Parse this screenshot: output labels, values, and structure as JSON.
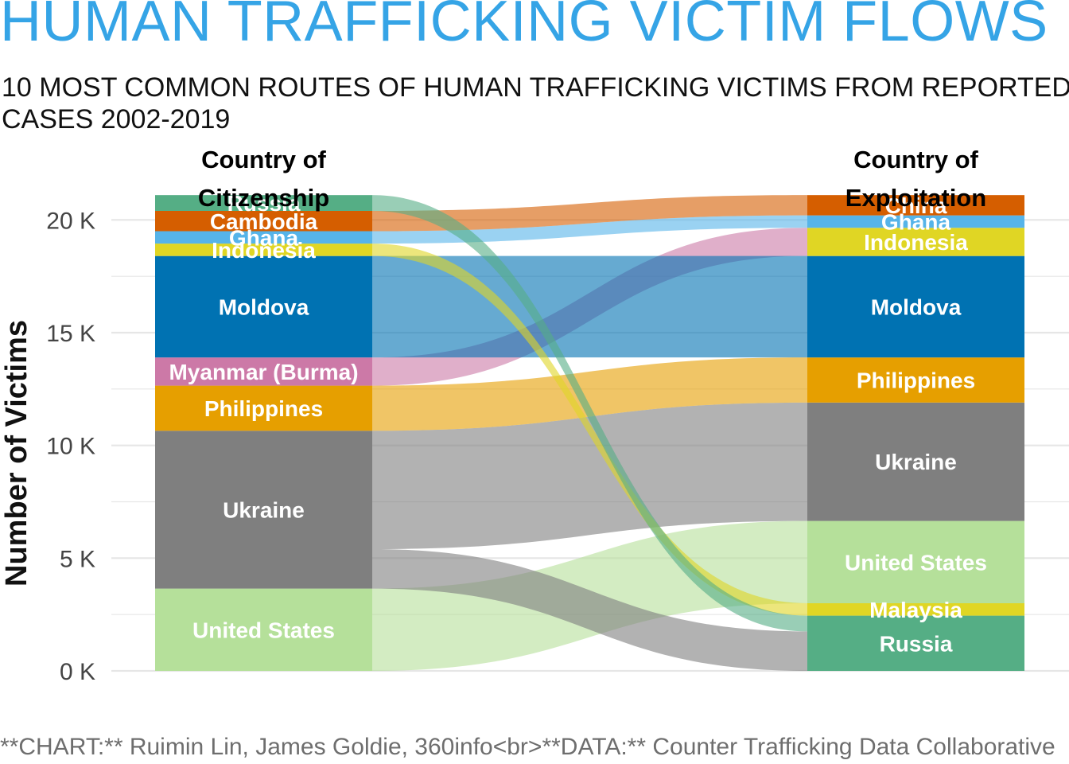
{
  "title": "HUMAN TRAFFICKING VICTIM FLOWS",
  "subtitle": "10 MOST COMMON ROUTES OF HUMAN TRAFFICKING VICTIMS FROM REPORTED\nCASES 2002-2019",
  "caption": "**CHART:** Ruimin Lin, James Goldie, 360info<br>**DATA:** Counter Trafficking Data Collaborative",
  "chart_data": {
    "type": "alluvial",
    "ylabel": "Number of Victims",
    "ylim": [
      0,
      21000
    ],
    "yticks": [
      {
        "value": 0,
        "label": "0 K"
      },
      {
        "value": 5000,
        "label": "5 K"
      },
      {
        "value": 10000,
        "label": "10 K"
      },
      {
        "value": 15000,
        "label": "15 K"
      },
      {
        "value": 20000,
        "label": "20 K"
      }
    ],
    "axes": [
      {
        "key": "citizenship",
        "label": "Country of\nCitizenship"
      },
      {
        "key": "exploitation",
        "label": "Country of\nExploitation"
      }
    ],
    "colors": {
      "United States": "#b5e09a",
      "Ukraine": "#7f7f7f",
      "Philippines": "#e69f00",
      "Myanmar (Burma)": "#cc79a7",
      "Moldova": "#0072b2",
      "Indonesia": "#e0d624",
      "Ghana": "#56b4e9",
      "Cambodia": "#d55e00",
      "Russia": "#55ae85",
      "Malaysia": "#e0d624",
      "China": "#d55e00"
    },
    "citizenship_order": [
      "United States",
      "Ukraine",
      "Philippines",
      "Myanmar (Burma)",
      "Moldova",
      "Indonesia",
      "Ghana",
      "Cambodia",
      "Russia"
    ],
    "exploitation_order": [
      "Russia",
      "Malaysia",
      "United States",
      "Ukraine",
      "Philippines",
      "Moldova",
      "Indonesia",
      "Ghana",
      "China"
    ],
    "flows": [
      {
        "from": "United States",
        "to": "United States",
        "value": 3650
      },
      {
        "from": "Ukraine",
        "to": "Russia",
        "value": 1750
      },
      {
        "from": "Ukraine",
        "to": "Ukraine",
        "value": 5250
      },
      {
        "from": "Philippines",
        "to": "Philippines",
        "value": 2000
      },
      {
        "from": "Myanmar (Burma)",
        "to": "Indonesia",
        "value": 1250
      },
      {
        "from": "Moldova",
        "to": "Moldova",
        "value": 4500
      },
      {
        "from": "Indonesia",
        "to": "Malaysia",
        "value": 550
      },
      {
        "from": "Ghana",
        "to": "Ghana",
        "value": 550
      },
      {
        "from": "Cambodia",
        "to": "China",
        "value": 900
      },
      {
        "from": "Russia",
        "to": "Russia",
        "value": 700
      }
    ]
  }
}
